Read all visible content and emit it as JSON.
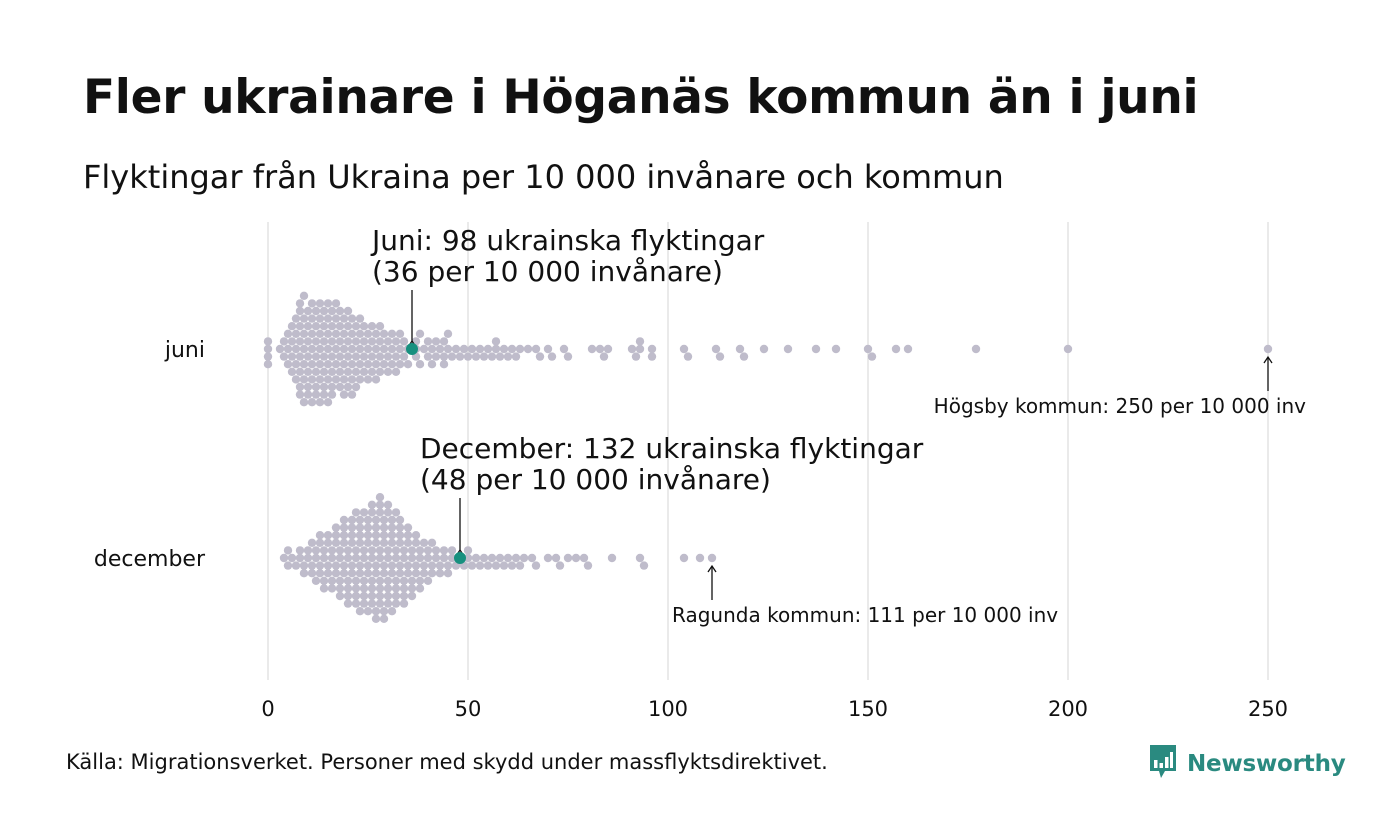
{
  "title": "Fler ukrainare i Höganäs kommun än i juni",
  "subtitle": "Flyktingar från Ukraina per 10 000 invånare och kommun",
  "source": "Källa: Migrationsverket. Personer med skydd under massflyktsdirektivet.",
  "brand": {
    "name": "Newsworthy",
    "logo_icon": "bar-chart-speech-bubble-icon",
    "color": "#2a8a80"
  },
  "colors": {
    "dot": "#bfbccb",
    "highlight": "#17907f",
    "grid": "#d6d6d6",
    "text": "#111111"
  },
  "chart_data": {
    "type": "scatter",
    "subtype": "beeswarm",
    "title": "Fler ukrainare i Höganäs kommun än i juni",
    "subtitle": "Flyktingar från Ukraina per 10 000 invånare och kommun",
    "xlabel": "",
    "ylabel": "",
    "xlim": [
      0,
      250
    ],
    "xticks": [
      0,
      50,
      100,
      150,
      200,
      250
    ],
    "grid": "vertical",
    "categories": [
      "juni",
      "december"
    ],
    "series": [
      {
        "category": "juni",
        "values": [
          0,
          0,
          0,
          0,
          3,
          4,
          4,
          5,
          5,
          5,
          6,
          6,
          6,
          6,
          7,
          7,
          7,
          7,
          7,
          8,
          8,
          8,
          8,
          8,
          8,
          8,
          8,
          9,
          9,
          9,
          9,
          9,
          9,
          9,
          10,
          10,
          10,
          10,
          10,
          10,
          10,
          11,
          11,
          11,
          11,
          11,
          11,
          11,
          12,
          12,
          12,
          12,
          12,
          12,
          12,
          13,
          13,
          13,
          13,
          13,
          13,
          13,
          14,
          14,
          14,
          14,
          14,
          14,
          14,
          15,
          15,
          15,
          15,
          15,
          15,
          15,
          16,
          16,
          16,
          16,
          16,
          16,
          16,
          17,
          17,
          17,
          17,
          17,
          17,
          18,
          18,
          18,
          18,
          18,
          18,
          19,
          19,
          19,
          19,
          19,
          19,
          20,
          20,
          20,
          20,
          20,
          20,
          21,
          21,
          21,
          21,
          21,
          21,
          22,
          22,
          22,
          22,
          22,
          23,
          23,
          23,
          23,
          23,
          24,
          24,
          24,
          24,
          25,
          25,
          25,
          25,
          26,
          26,
          26,
          26,
          27,
          27,
          27,
          27,
          28,
          28,
          28,
          28,
          29,
          29,
          29,
          30,
          30,
          30,
          31,
          31,
          31,
          32,
          32,
          32,
          33,
          33,
          33,
          34,
          34,
          35,
          35,
          37,
          37,
          37,
          38,
          38,
          39,
          40,
          40,
          41,
          41,
          42,
          42,
          43,
          44,
          44,
          44,
          45,
          45,
          46,
          47,
          48,
          49,
          50,
          51,
          52,
          53,
          54,
          55,
          56,
          57,
          57,
          58,
          59,
          60,
          61,
          62,
          63,
          65,
          67,
          68,
          70,
          71,
          74,
          75,
          81,
          83,
          84,
          85,
          91,
          92,
          93,
          93,
          96,
          96,
          104,
          105,
          112,
          113,
          118,
          119,
          124,
          130,
          137,
          142,
          150,
          151,
          157,
          160,
          177,
          200,
          250
        ],
        "highlight": {
          "value": 36,
          "label": "Juni:  98 ukrainska flyktingar",
          "label2": "(36 per 10 000 invånare)"
        },
        "annotation": {
          "value": 250,
          "text": "Högsby kommun: 250 per 10 000 inv"
        }
      },
      {
        "category": "december",
        "values": [
          4,
          5,
          5,
          6,
          7,
          8,
          8,
          9,
          9,
          10,
          10,
          11,
          11,
          11,
          12,
          12,
          12,
          13,
          13,
          13,
          13,
          14,
          14,
          14,
          14,
          15,
          15,
          15,
          15,
          16,
          16,
          16,
          16,
          17,
          17,
          17,
          17,
          17,
          18,
          18,
          18,
          18,
          18,
          19,
          19,
          19,
          19,
          19,
          19,
          20,
          20,
          20,
          20,
          20,
          20,
          21,
          21,
          21,
          21,
          21,
          21,
          22,
          22,
          22,
          22,
          22,
          22,
          22,
          23,
          23,
          23,
          23,
          23,
          23,
          23,
          24,
          24,
          24,
          24,
          24,
          24,
          24,
          25,
          25,
          25,
          25,
          25,
          25,
          25,
          26,
          26,
          26,
          26,
          26,
          26,
          26,
          26,
          27,
          27,
          27,
          27,
          27,
          27,
          27,
          27,
          28,
          28,
          28,
          28,
          28,
          28,
          28,
          28,
          28,
          29,
          29,
          29,
          29,
          29,
          29,
          29,
          29,
          30,
          30,
          30,
          30,
          30,
          30,
          30,
          30,
          31,
          31,
          31,
          31,
          31,
          31,
          31,
          32,
          32,
          32,
          32,
          32,
          32,
          32,
          33,
          33,
          33,
          33,
          33,
          33,
          34,
          34,
          34,
          34,
          34,
          34,
          35,
          35,
          35,
          35,
          35,
          36,
          36,
          36,
          36,
          36,
          37,
          37,
          37,
          37,
          38,
          38,
          38,
          38,
          39,
          39,
          39,
          40,
          40,
          40,
          41,
          41,
          41,
          42,
          42,
          43,
          43,
          44,
          44,
          45,
          45,
          46,
          46,
          47,
          48,
          49,
          50,
          50,
          51,
          52,
          53,
          54,
          55,
          56,
          57,
          58,
          59,
          60,
          61,
          62,
          63,
          64,
          66,
          67,
          70,
          72,
          73,
          75,
          77,
          79,
          80,
          86,
          93,
          94,
          104,
          108,
          111
        ],
        "highlight": {
          "value": 48,
          "label": "December: 132 ukrainska flyktingar",
          "label2": "(48 per 10 000 invånare)"
        },
        "annotation": {
          "value": 111,
          "text": "Ragunda kommun: 111 per 10 000 inv"
        }
      }
    ]
  }
}
